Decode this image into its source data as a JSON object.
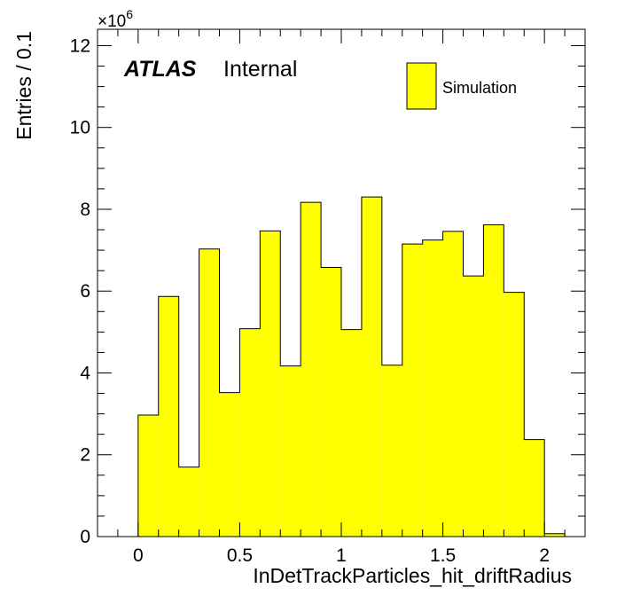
{
  "chart_data": {
    "type": "bar",
    "histogram": true,
    "xlabel": "InDetTrackParticles_hit_driftRadius",
    "ylabel": "Entries / 0.1",
    "y_multiplier_label": "×10",
    "y_multiplier_exponent": "6",
    "xlim": [
      -0.2,
      2.2
    ],
    "ylim": [
      0,
      12.4
    ],
    "x_ticks": [
      0,
      0.5,
      1,
      1.5,
      2
    ],
    "x_tick_labels": [
      "0",
      "0.5",
      "1",
      "1.5",
      "2"
    ],
    "y_ticks": [
      0,
      2,
      4,
      6,
      8,
      10,
      12
    ],
    "y_tick_labels": [
      "0",
      "2",
      "4",
      "6",
      "8",
      "10",
      "12"
    ],
    "bin_width": 0.1,
    "bin_edges": [
      0.0,
      0.1,
      0.2,
      0.3,
      0.4,
      0.5,
      0.6,
      0.7,
      0.8,
      0.9,
      1.0,
      1.1,
      1.2,
      1.3,
      1.4,
      1.5,
      1.6,
      1.7,
      1.8,
      1.9,
      2.0,
      2.1
    ],
    "values": [
      2.97,
      5.87,
      1.7,
      7.03,
      3.52,
      5.08,
      7.47,
      4.17,
      8.17,
      6.58,
      5.06,
      8.3,
      4.19,
      7.15,
      7.25,
      7.46,
      6.37,
      7.62,
      5.97,
      2.37,
      0.07
    ],
    "series": [
      {
        "name": "Simulation",
        "color": "#ffff00"
      }
    ],
    "fill_color": "#ffff00",
    "edge_color": "#000000",
    "legend_position": "top-right",
    "grid": false
  },
  "labels": {
    "atlas": "ATLAS",
    "internal": "Internal",
    "legend_entry": "Simulation"
  }
}
